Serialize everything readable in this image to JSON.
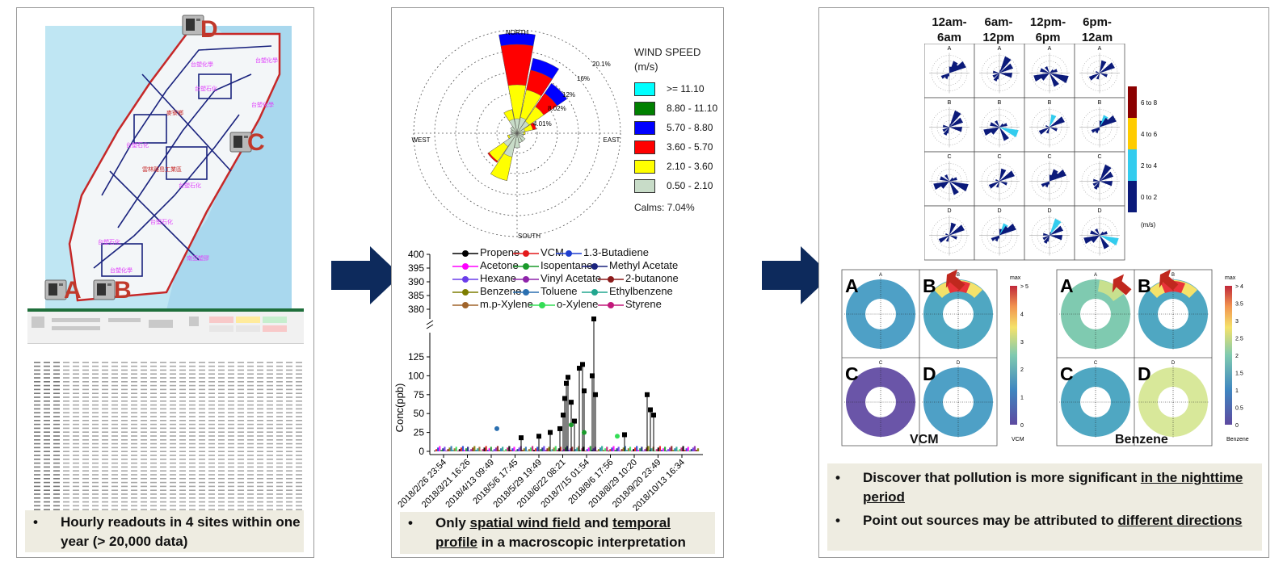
{
  "panels": {
    "left": {
      "sites": [
        "A",
        "B",
        "C",
        "D"
      ],
      "caption": "Hourly readouts in 4 sites within one year (> 20,000 data)"
    },
    "middle": {
      "rose": {
        "compass": {
          "north": "NORTH",
          "south": "SOUTH",
          "east": "EAST",
          "west": "WEST"
        },
        "rings": [
          "4.01%",
          "8.02%",
          "12%",
          "16%",
          "20.1%"
        ],
        "legend_title_1": "WIND SPEED",
        "legend_title_2": "(m/s)",
        "legend": [
          {
            "label": ">= 11.10",
            "color": "#00ffff"
          },
          {
            "label": "8.80 - 11.10",
            "color": "#008000"
          },
          {
            "label": "5.70 - 8.80",
            "color": "#0000ff"
          },
          {
            "label": "3.60 - 5.70",
            "color": "#ff0000"
          },
          {
            "label": "2.10 - 3.60",
            "color": "#ffff00"
          },
          {
            "label": "0.50 - 2.10",
            "color": "#c8dcc8"
          }
        ],
        "calms": "Calms: 7.04%"
      },
      "timeseries": {
        "ylabel": "Conc(ppb)",
        "upper_ticks": [
          "400",
          "395",
          "390",
          "385",
          "380"
        ],
        "lower_ticks": [
          "125",
          "100",
          "75",
          "50",
          "25",
          "0"
        ],
        "xticks": [
          "2018/2/26 23:54",
          "2018/3/21 16:26",
          "2018/4/13 09:49",
          "2018/5/6 17:45",
          "2018/5/29 19:49",
          "2018/6/22 08:21",
          "2018/7/15 01:54",
          "2018/8/6 17:56",
          "2018/8/29 10:20",
          "2018/9/20 23:49",
          "2018/10/13 16:34"
        ],
        "species": [
          {
            "name": "Propene",
            "color": "#000000"
          },
          {
            "name": "VCM",
            "color": "#e41a1c"
          },
          {
            "name": "1.3-Butadiene",
            "color": "#1f3fd0"
          },
          {
            "name": "Acetone",
            "color": "#ff00ff"
          },
          {
            "name": "Isopentane",
            "color": "#1a9a2a"
          },
          {
            "name": "Methyl Acetate",
            "color": "#1a237e"
          },
          {
            "name": "Hexane",
            "color": "#6a3dea"
          },
          {
            "name": "Vinyl Acetate",
            "color": "#8e24aa"
          },
          {
            "name": "2-butanone",
            "color": "#8b1a1a"
          },
          {
            "name": "Benzene",
            "color": "#7d7d00"
          },
          {
            "name": "Toluene",
            "color": "#2a6fb0"
          },
          {
            "name": "Ethylbenzene",
            "color": "#22a68f"
          },
          {
            "name": "m.p-Xylene",
            "color": "#a0642a"
          },
          {
            "name": "o-Xylene",
            "color": "#33dd55"
          },
          {
            "name": "Styrene",
            "color": "#c2187a"
          }
        ]
      },
      "caption_parts": [
        "Only ",
        "spatial wind field",
        " and ",
        "temporal profile",
        " in a macroscopic interpretation"
      ]
    },
    "right": {
      "time_periods": [
        "12am-\n6am",
        "6am-\n12pm",
        "12pm-\n6pm",
        "6pm-\n12am"
      ],
      "row_sites": [
        "A",
        "B",
        "C",
        "D"
      ],
      "colorbar": [
        "6 to 8",
        "4 to 6",
        "2 to 4",
        "0 to 2"
      ],
      "colorbar_unit": "(m/s)",
      "polar_groups": [
        {
          "label": "VCM",
          "max": "max",
          "ticks": [
            "> 5",
            "4",
            "3",
            "2",
            "1",
            "0"
          ],
          "unit": "VCM"
        },
        {
          "label": "Benzene",
          "max": "max",
          "ticks": [
            "> 4",
            "3.5",
            "3",
            "2.5",
            "2",
            "1.5",
            "1",
            "0.5",
            "0"
          ],
          "unit": "Benzene"
        }
      ],
      "caption_1_parts": [
        "Discover that pollution is more significant ",
        "in the nighttime period"
      ],
      "caption_2_parts": [
        "Point out sources may be attributed to ",
        "different directions"
      ]
    }
  },
  "colors": {
    "arrow": "#0d2a5c",
    "caption_bg": "#eeece1",
    "site_label": "#c0392b"
  }
}
